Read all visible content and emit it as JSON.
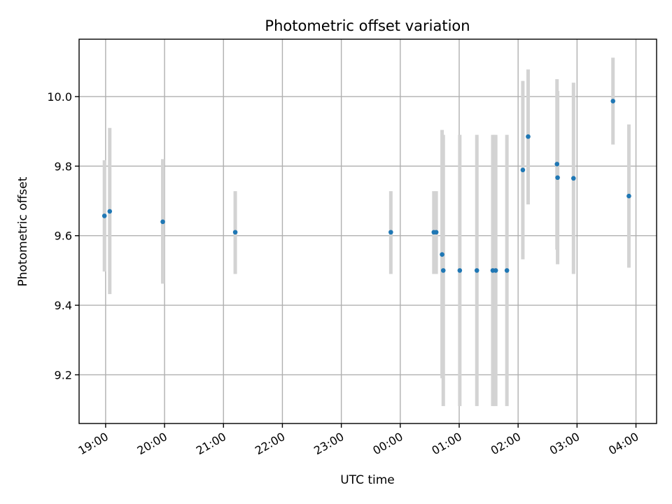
{
  "chart_data": {
    "type": "scatter",
    "title": "Photometric offset variation",
    "xlabel": "UTC time",
    "ylabel": "Photometric offset",
    "x_unit": "hours from 19:00 UTC",
    "xlim": [
      -0.45,
      9.35
    ],
    "ylim": [
      9.06,
      10.165
    ],
    "grid": true,
    "colors": {
      "point": "#1f77b4",
      "errorbar": "#d3d3d3"
    },
    "x_ticks": [
      {
        "value": 0,
        "label": "19:00"
      },
      {
        "value": 1,
        "label": "20:00"
      },
      {
        "value": 2,
        "label": "21:00"
      },
      {
        "value": 3,
        "label": "22:00"
      },
      {
        "value": 4,
        "label": "23:00"
      },
      {
        "value": 5,
        "label": "00:00"
      },
      {
        "value": 6,
        "label": "01:00"
      },
      {
        "value": 7,
        "label": "02:00"
      },
      {
        "value": 8,
        "label": "03:00"
      },
      {
        "value": 9,
        "label": "04:00"
      }
    ],
    "y_ticks": [
      {
        "value": 9.2,
        "label": "9.2"
      },
      {
        "value": 9.4,
        "label": "9.4"
      },
      {
        "value": 9.6,
        "label": "9.6"
      },
      {
        "value": 9.8,
        "label": "9.8"
      },
      {
        "value": 10.0,
        "label": "10.0"
      }
    ],
    "points": [
      {
        "x": -0.02,
        "y": 9.657,
        "lo": 9.497,
        "hi": 9.817
      },
      {
        "x": 0.07,
        "y": 9.67,
        "lo": 9.432,
        "hi": 9.91
      },
      {
        "x": 0.97,
        "y": 9.64,
        "lo": 9.462,
        "hi": 9.82
      },
      {
        "x": 2.2,
        "y": 9.61,
        "lo": 9.49,
        "hi": 9.728
      },
      {
        "x": 4.84,
        "y": 9.61,
        "lo": 9.49,
        "hi": 9.728
      },
      {
        "x": 5.57,
        "y": 9.61,
        "lo": 9.49,
        "hi": 9.728
      },
      {
        "x": 5.61,
        "y": 9.61,
        "lo": 9.49,
        "hi": 9.728
      },
      {
        "x": 5.71,
        "y": 9.546,
        "lo": 9.19,
        "hi": 9.904
      },
      {
        "x": 5.73,
        "y": 9.5,
        "lo": 9.11,
        "hi": 9.89
      },
      {
        "x": 6.01,
        "y": 9.5,
        "lo": 9.11,
        "hi": 9.89
      },
      {
        "x": 6.3,
        "y": 9.5,
        "lo": 9.11,
        "hi": 9.89
      },
      {
        "x": 6.57,
        "y": 9.5,
        "lo": 9.11,
        "hi": 9.89
      },
      {
        "x": 6.62,
        "y": 9.5,
        "lo": 9.11,
        "hi": 9.89
      },
      {
        "x": 6.81,
        "y": 9.5,
        "lo": 9.11,
        "hi": 9.89
      },
      {
        "x": 7.08,
        "y": 9.789,
        "lo": 9.532,
        "hi": 10.045
      },
      {
        "x": 7.17,
        "y": 9.885,
        "lo": 9.69,
        "hi": 10.078
      },
      {
        "x": 7.66,
        "y": 9.806,
        "lo": 9.56,
        "hi": 10.05
      },
      {
        "x": 7.67,
        "y": 9.767,
        "lo": 9.518,
        "hi": 10.016
      },
      {
        "x": 7.94,
        "y": 9.765,
        "lo": 9.49,
        "hi": 10.04
      },
      {
        "x": 8.61,
        "y": 9.987,
        "lo": 9.862,
        "hi": 10.112
      },
      {
        "x": 8.88,
        "y": 9.714,
        "lo": 9.508,
        "hi": 9.92
      }
    ]
  }
}
